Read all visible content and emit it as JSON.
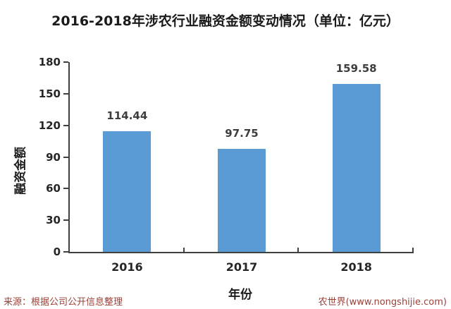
{
  "page": {
    "background": "#ffffff"
  },
  "chart_data": {
    "type": "bar",
    "title": "2016-2018年涉农行业融资金额变动情况（单位：亿元）",
    "categories": [
      "2016",
      "2017",
      "2018"
    ],
    "values": [
      114.44,
      97.75,
      159.58
    ],
    "value_labels": [
      "114.44",
      "97.75",
      "159.58"
    ],
    "xlabel": "年份",
    "ylabel": "融资金额",
    "ylim": [
      0,
      180
    ],
    "yticks": [
      0,
      30,
      60,
      90,
      120,
      150,
      180
    ],
    "grid": false,
    "legend": "none",
    "colors": {
      "bar": "#5B9BD5",
      "axis": "#404040",
      "tick_label": "#262626",
      "value_label": "#3d3d3d",
      "title": "#1a1a1a"
    }
  },
  "footer": {
    "source": "来源：根据公司公开信息整理",
    "brand": "农世界(www.nongshijie.com)",
    "color": "#9a4238"
  }
}
